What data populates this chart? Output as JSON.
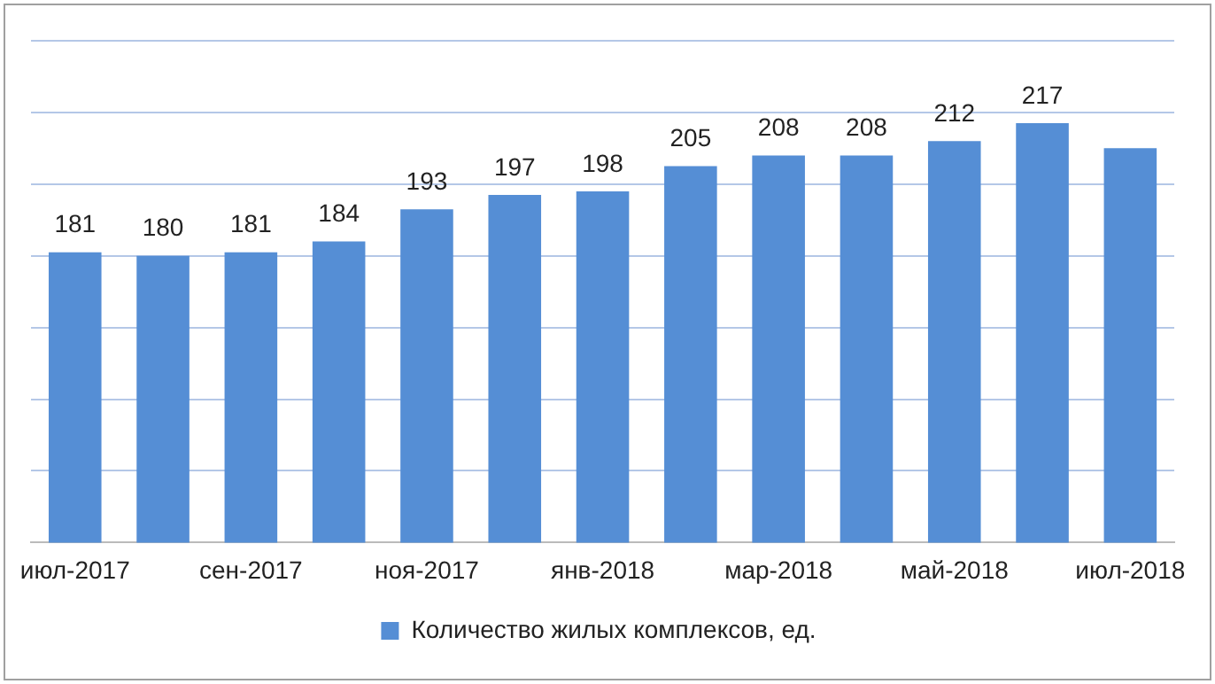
{
  "chart_data": {
    "type": "bar",
    "categories": [
      "июл-2017",
      null,
      "сен-2017",
      null,
      "ноя-2017",
      null,
      "янв-2018",
      null,
      "мар-2018",
      null,
      "май-2018",
      null,
      "июл-2018"
    ],
    "series": [
      {
        "name": "Количество жилых комплексов, ед.",
        "color": "#558ed5",
        "values": [
          181,
          180,
          181,
          184,
          193,
          197,
          198,
          205,
          208,
          208,
          212,
          217,
          210
        ],
        "value_labels": [
          "181",
          "180",
          "181",
          "184",
          "193",
          "197",
          "198",
          "205",
          "208",
          "208",
          "212",
          "217",
          null
        ]
      }
    ],
    "ylim": [
      100,
      240
    ],
    "yticks": [
      {
        "value": 100,
        "label": null
      },
      {
        "value": 120,
        "label": null
      },
      {
        "value": 140,
        "label": null
      },
      {
        "value": 160,
        "label": null
      },
      {
        "value": 180,
        "label": null
      },
      {
        "value": 200,
        "label": null
      },
      {
        "value": 220,
        "label": null
      },
      {
        "value": 240,
        "label": null
      }
    ],
    "grid": "y",
    "legend": "bottom",
    "tick_labels": "x"
  }
}
